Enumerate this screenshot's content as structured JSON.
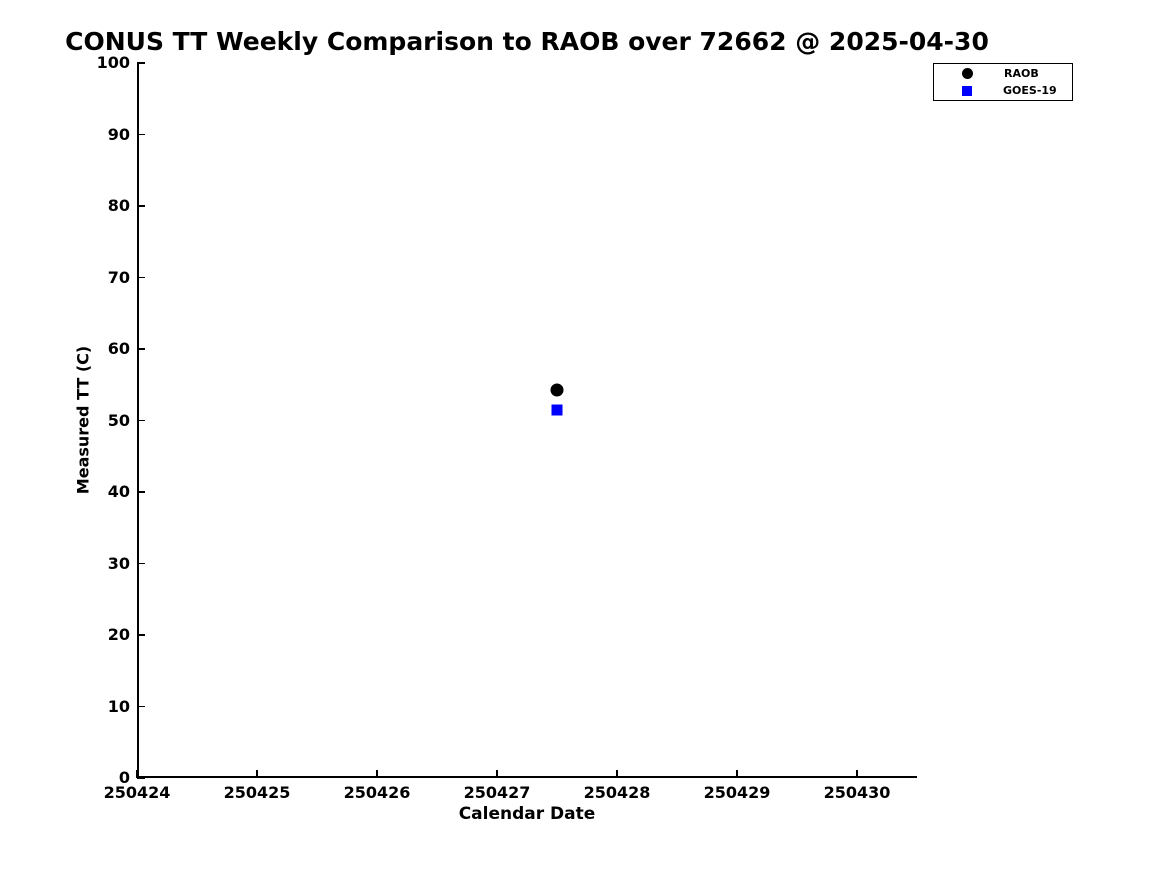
{
  "figure": {
    "background_color": "#ffffff",
    "axis_color": "#000000"
  },
  "chart_data": {
    "type": "scatter",
    "title": "CONUS TT Weekly Comparison to RAOB over 72662 @ 2025-04-30",
    "xlabel": "Calendar Date",
    "ylabel": "Measured TT (C)",
    "xlim": [
      250424,
      250430.5
    ],
    "ylim": [
      0,
      100
    ],
    "x_ticks": [
      250424,
      250425,
      250426,
      250427,
      250428,
      250429,
      250430
    ],
    "y_ticks": [
      0,
      10,
      20,
      30,
      40,
      50,
      60,
      70,
      80,
      90,
      100
    ],
    "grid": false,
    "legend_position": "top-right",
    "series": [
      {
        "name": "RAOB",
        "marker": "circle",
        "color": "#000000",
        "points": [
          {
            "x": 250427.5,
            "y": 54.3
          }
        ]
      },
      {
        "name": "GOES-19",
        "marker": "square",
        "color": "#0000ff",
        "points": [
          {
            "x": 250427.5,
            "y": 51.4
          }
        ]
      }
    ]
  }
}
